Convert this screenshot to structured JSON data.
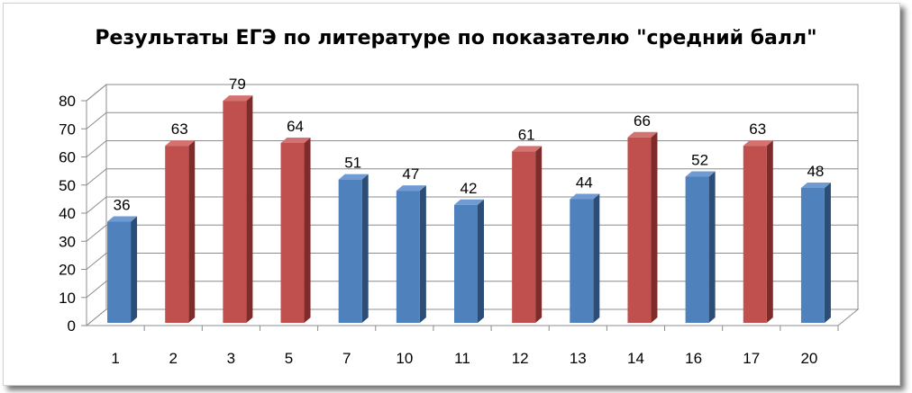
{
  "chart_data": {
    "type": "bar",
    "title": "Результаты ЕГЭ по литературе по показателю \"средний балл\"",
    "categories": [
      "1",
      "2",
      "3",
      "5",
      "7",
      "10",
      "11",
      "12",
      "13",
      "14",
      "16",
      "17",
      "20"
    ],
    "values": [
      36,
      63,
      79,
      64,
      51,
      47,
      42,
      61,
      44,
      66,
      52,
      63,
      48
    ],
    "highlight": [
      false,
      true,
      true,
      true,
      false,
      false,
      false,
      true,
      false,
      true,
      false,
      true,
      false
    ],
    "ylim": [
      0,
      80
    ],
    "yticks": [
      0,
      10,
      20,
      30,
      40,
      50,
      60,
      70,
      80
    ],
    "grid": true,
    "data_labels": true,
    "colors": {
      "blue_front": "#4f81bd",
      "blue_side": "#2c4d75",
      "blue_top": "#6f9bd2",
      "red_front": "#c0504d",
      "red_side": "#7f2b29",
      "red_top": "#d37270"
    }
  }
}
